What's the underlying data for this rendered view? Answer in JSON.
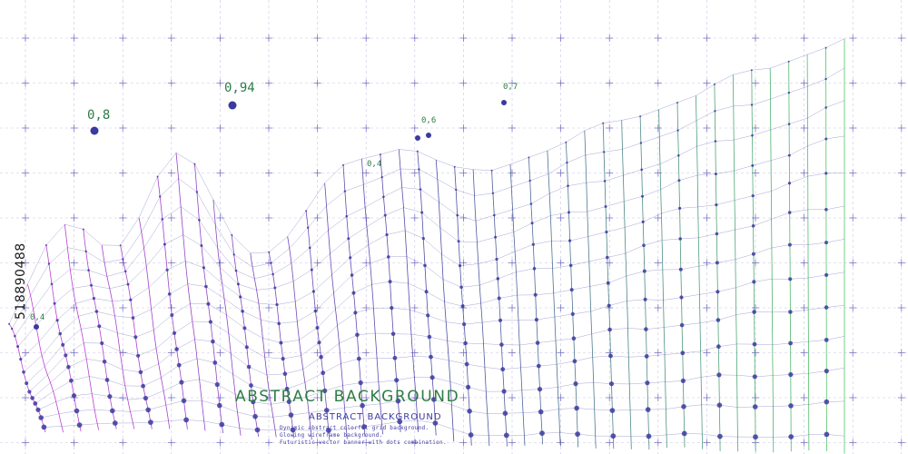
{
  "title": "ABSTRACT BACKGROUND",
  "subtitle": "ABSTRACT BACKGROUND",
  "description": [
    "Dynamic abstract colorful grid background.",
    "Glowing wireframe background.",
    "Futuristic vector banner with dots combination."
  ],
  "peak_labels": [
    "0,8",
    "0,94",
    "0,6",
    "0,7",
    "0,4",
    "0,4"
  ],
  "stock_id": "518890488",
  "colors": {
    "background": "#ffffff",
    "grid": "#c9c6e4",
    "grid_cross": "#6d68c0",
    "magenta": "#c22ad4",
    "indigo": "#3b3a9e",
    "green": "#3fc256",
    "label_green": "#2e7d46"
  }
}
